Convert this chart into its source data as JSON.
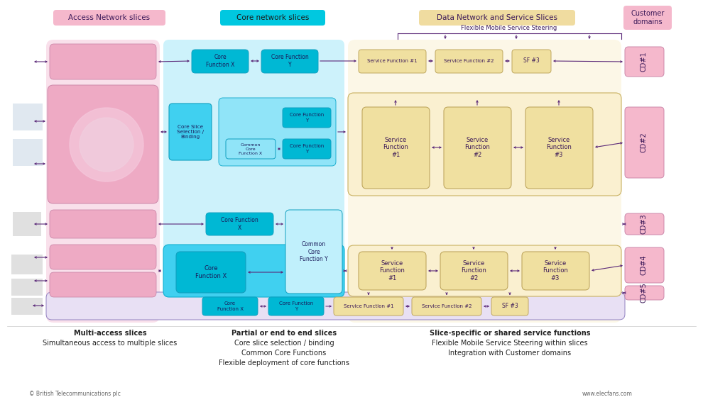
{
  "bg": "#ffffff",
  "pink_label": "#f5b8cc",
  "cyan_label": "#00c8e0",
  "wheat_label": "#f0dca0",
  "pink_light": "#f5c8dc",
  "pink_med": "#eeaac4",
  "cyan_dark": "#00b8d4",
  "cyan_med": "#40d0f0",
  "cyan_light": "#90e4f8",
  "cyan_pale": "#c0f0fc",
  "wheat_light": "#faf0d0",
  "wheat_med": "#f0e0a0",
  "wheat_dark": "#e8d080",
  "purple": "#5a2878",
  "dark_text": "#3a1858",
  "gray_text": "#444444",
  "section_access": "Access Network slices",
  "section_core": "Core network slices",
  "section_data": "Data Network and Service Slices",
  "section_customer": "Customer\ndomains",
  "steering_text": "Flexible Mobile Service Steering",
  "cd_labels": [
    "CD#1",
    "CD#2",
    "CD#3",
    "CD#4",
    "CD#5"
  ],
  "bottom_col1": [
    "Multi-access slices",
    "Simultaneous access to multiple slices"
  ],
  "bottom_col2": [
    "Partial or end to end slices",
    "Core slice selection / binding",
    "Common Core Functions",
    "Flexible deployment of core functions"
  ],
  "bottom_col3": [
    "Slice-specific or shared service functions",
    "Flexible Mobile Service Steering within slices",
    "Integration with Customer domains"
  ],
  "copyright": "© British Telecommunications plc",
  "website": "www.elecfans.com"
}
